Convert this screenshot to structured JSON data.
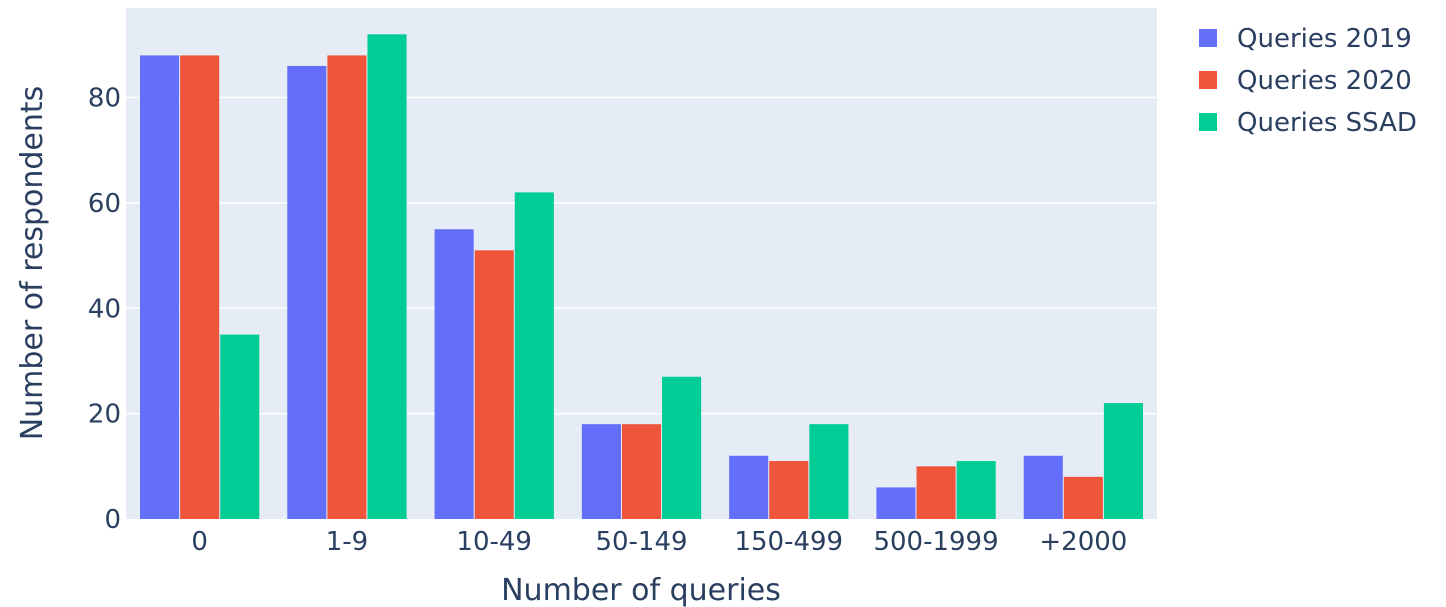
{
  "chart_data": {
    "type": "bar",
    "categories": [
      "0",
      "1-9",
      "10-49",
      "50-149",
      "150-499",
      "500-1999",
      "+2000"
    ],
    "series": [
      {
        "name": "Queries 2019",
        "color": "#636efa",
        "values": [
          88,
          86,
          55,
          18,
          12,
          6,
          12
        ]
      },
      {
        "name": "Queries 2020",
        "color": "#ef553b",
        "values": [
          88,
          88,
          51,
          18,
          11,
          10,
          8
        ]
      },
      {
        "name": "Queries SSAD",
        "color": "#00cc96",
        "values": [
          35,
          92,
          62,
          27,
          18,
          11,
          22
        ]
      }
    ],
    "xlabel": "Number of queries",
    "ylabel": "Number of respondents",
    "ylim": [
      0,
      97
    ],
    "yticks": [
      0,
      20,
      40,
      60,
      80
    ],
    "grid": true,
    "legend_position": "top-right",
    "plot_background": "#e5ecf6"
  }
}
